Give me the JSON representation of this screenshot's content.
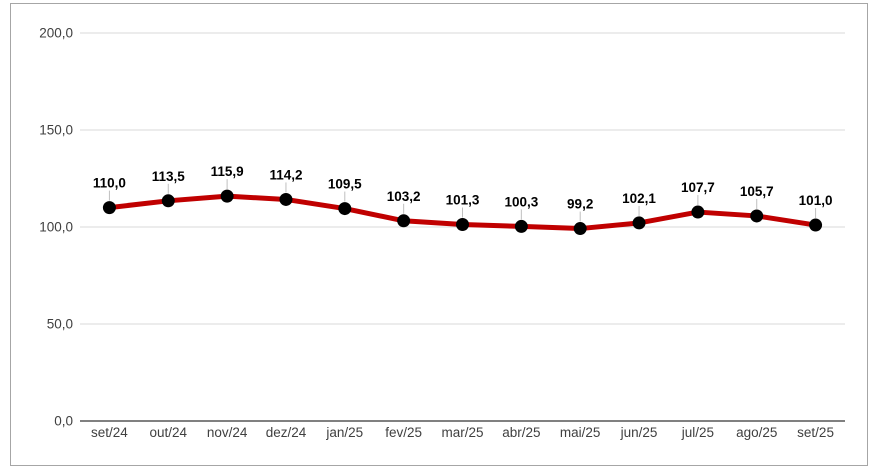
{
  "chart_data": {
    "type": "line",
    "title": "",
    "xlabel": "",
    "ylabel": "",
    "categories": [
      "set/24",
      "out/24",
      "nov/24",
      "dez/24",
      "jan/25",
      "fev/25",
      "mar/25",
      "abr/25",
      "mai/25",
      "jun/25",
      "jul/25",
      "ago/25",
      "set/25"
    ],
    "values": [
      110.0,
      113.5,
      115.9,
      114.2,
      109.5,
      103.2,
      101.3,
      100.3,
      99.2,
      102.1,
      107.7,
      105.7,
      101.0
    ],
    "value_labels": [
      "110,0",
      "113,5",
      "115,9",
      "114,2",
      "109,5",
      "103,2",
      "101,3",
      "100,3",
      "99,2",
      "102,1",
      "107,7",
      "105,7",
      "101,0"
    ],
    "ylim": [
      0,
      200
    ],
    "ytick_step": 50,
    "ytick_labels": [
      "0,0",
      "50,0",
      "100,0",
      "150,0",
      "200,0"
    ],
    "grid": true,
    "legend": "none",
    "colors": {
      "line": "#c00000",
      "marker": "#000000",
      "gridline": "#d9d9d9",
      "axis_line": "#808080",
      "leader_line": "#bfbfbf",
      "tick_label": "#404040",
      "data_label": "#000000",
      "frame_border": "#a6a6a6",
      "background": "#ffffff"
    }
  }
}
